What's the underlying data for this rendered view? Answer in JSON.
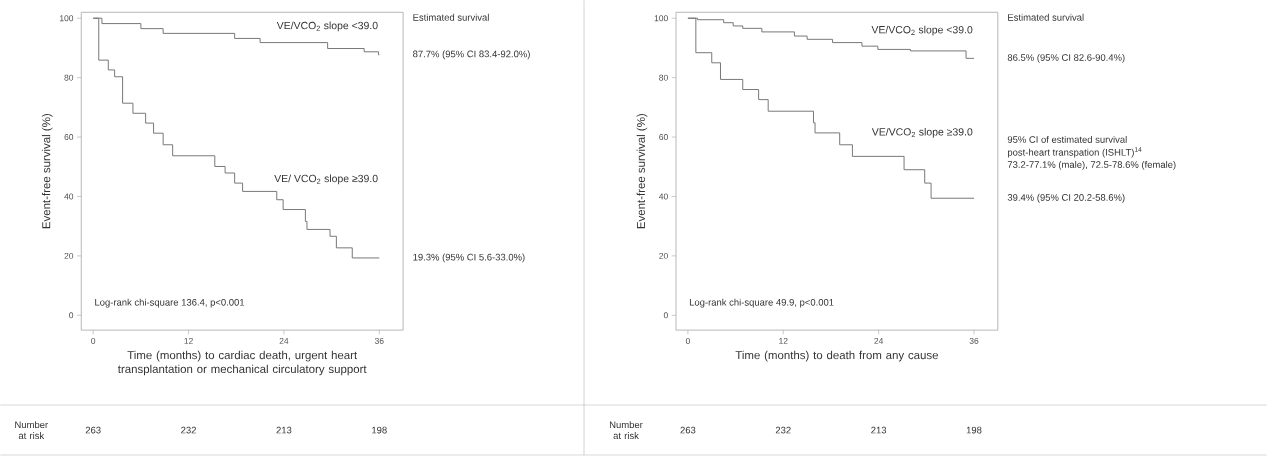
{
  "chart_data": [
    {
      "type": "step",
      "xlabel": "Time (months) to cardiac death, urgent heart transplantation or mechanical circulatory support",
      "ylabel": "Event-free survival (%)",
      "xlim": [
        -1.5,
        39
      ],
      "ylim": [
        -5,
        102
      ],
      "xticks": [
        0,
        12,
        24,
        36
      ],
      "yticks": [
        0,
        20,
        40,
        60,
        80,
        100
      ],
      "series": [
        {
          "name": "VE/VCO$_{2}$ slope <39.0",
          "color": "#777777",
          "x": [
            0,
            1.1,
            6.0,
            8.8,
            17.8,
            21.0,
            29.5,
            34.1,
            35.9,
            36
          ],
          "values": [
            100,
            98.2,
            96.5,
            94.9,
            93.2,
            91.8,
            89.8,
            88.7,
            87.7,
            87.7
          ]
        },
        {
          "name": "VE/ VCO$_{2}$ slope ≥39.0",
          "color": "#777777",
          "x": [
            0,
            0.7,
            1.9,
            2.7,
            3.7,
            5.0,
            6.6,
            7.6,
            8.8,
            10.0,
            15.3,
            16.6,
            17.8,
            18.8,
            23.1,
            23.9,
            26.7,
            26.9,
            29.8,
            30.6,
            32.6,
            36
          ],
          "values": [
            100,
            85.9,
            82.6,
            80.3,
            71.4,
            68.0,
            64.7,
            61.3,
            57.4,
            53.7,
            50.1,
            47.9,
            44.5,
            41.7,
            38.9,
            35.6,
            31.6,
            28.9,
            26.6,
            22.7,
            19.3,
            19.3
          ]
        }
      ],
      "annotations": [
        "Estimated survival",
        "Log-rank chi-square 136.4, p<0.001",
        "Number at risk",
        "87.7% (95% CI 83.4-92.0%)",
        "19.3% (95% CI 5.6-33.0%)",
        "263",
        "232",
        "213",
        "198"
      ]
    },
    {
      "type": "step",
      "xlabel": "Time (months) to death from any cause",
      "ylabel": "Event-free survival (%)",
      "xlim": [
        -1.5,
        39
      ],
      "ylim": [
        -5,
        102
      ],
      "xticks": [
        0,
        12,
        24,
        36
      ],
      "yticks": [
        0,
        20,
        40,
        60,
        80,
        100
      ],
      "series": [
        {
          "name": "VE/VCO$_{2}$ slope <39.0",
          "color": "#777777",
          "x": [
            0,
            1.2,
            4.5,
            5.7,
            6.9,
            9.3,
            13.4,
            15.0,
            18.2,
            21.9,
            23.9,
            28.0,
            35.0,
            36
          ],
          "values": [
            100,
            99.5,
            98.5,
            97.4,
            96.6,
            95.4,
            94.0,
            92.9,
            91.8,
            90.6,
            89.5,
            89.0,
            86.5,
            86.5
          ]
        },
        {
          "name": "VE/VCO$_{2}$ slope ≥39.0",
          "color": "#777777",
          "x": [
            0,
            1.0,
            3.0,
            4.1,
            6.9,
            8.9,
            10.1,
            15.8,
            16.0,
            19.1,
            20.7,
            27.2,
            29.8,
            30.6,
            36
          ],
          "values": [
            100,
            88.4,
            85.0,
            79.4,
            76.0,
            72.6,
            68.7,
            64.8,
            61.4,
            57.4,
            53.5,
            49.0,
            44.5,
            39.4,
            39.4
          ]
        }
      ],
      "annotations": [
        "Estimated survival",
        "Log-rank  chi-square  49.9, p<0.001",
        "Number at risk",
        "86.5% (95% CI 82.6-90.4%)",
        "39.4% (95% CI 20.2-58.6%)",
        "263",
        "232",
        "213",
        "198",
        "95% CI of estimated survival",
        "post-heart transpation (ISHLT)$^{14}$",
        "73.2-77.1% (male), 72.5-78.6% (female)"
      ]
    }
  ]
}
